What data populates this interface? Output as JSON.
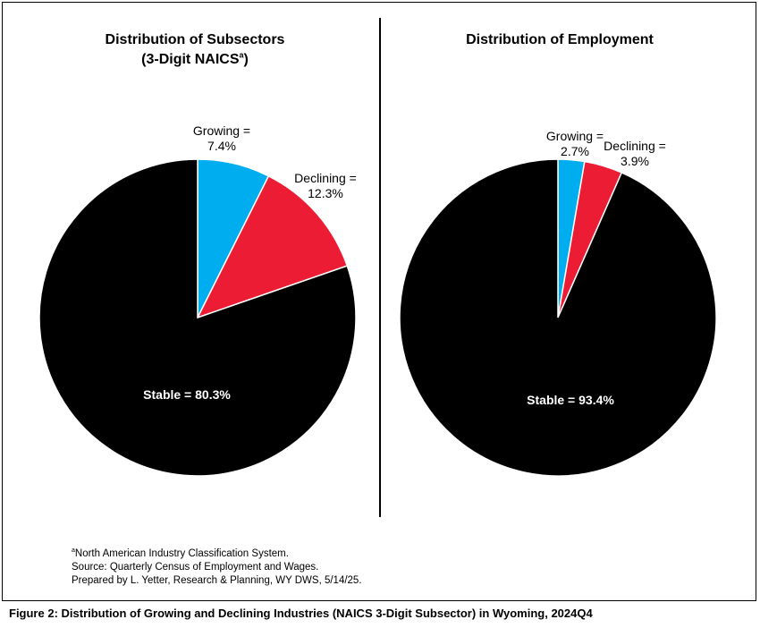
{
  "colors": {
    "growing": "#00aeef",
    "declining": "#ed1c35",
    "stable": "#000000"
  },
  "chart_data": [
    {
      "type": "pie",
      "title": "Distribution of Subsectors",
      "subtitle_main": "(3-Digit NAICS",
      "subtitle_sup": "a",
      "subtitle_end": ")",
      "slices": [
        {
          "key": "growing",
          "name": "Growing =",
          "value": 7.4,
          "label": "7.4%"
        },
        {
          "key": "declining",
          "name": "Declining =",
          "value": 12.3,
          "label": "12.3%"
        },
        {
          "key": "stable",
          "name": "Stable =",
          "value": 80.3,
          "label": "Stable = 80.3%"
        }
      ]
    },
    {
      "type": "pie",
      "title": "Distribution of Employment",
      "slices": [
        {
          "key": "growing",
          "name": "Growing =",
          "value": 2.7,
          "label": "2.7%"
        },
        {
          "key": "declining",
          "name": "Declining =",
          "value": 3.9,
          "label": "3.9%"
        },
        {
          "key": "stable",
          "name": "Stable =",
          "value": 93.4,
          "label": "Stable = 93.4%"
        }
      ]
    }
  ],
  "footnotes": {
    "naics_sup": "a",
    "naics": "North American Industry Classification System.",
    "source": "Source: Quarterly Census of Employment and Wages.",
    "prepared": "Prepared by L. Yetter, Research & Planning, WY DWS, 5/14/25."
  },
  "caption": "Figure 2: Distribution of Growing and Declining Industries (NAICS 3-Digit Subsector) in Wyoming, 2024Q4"
}
